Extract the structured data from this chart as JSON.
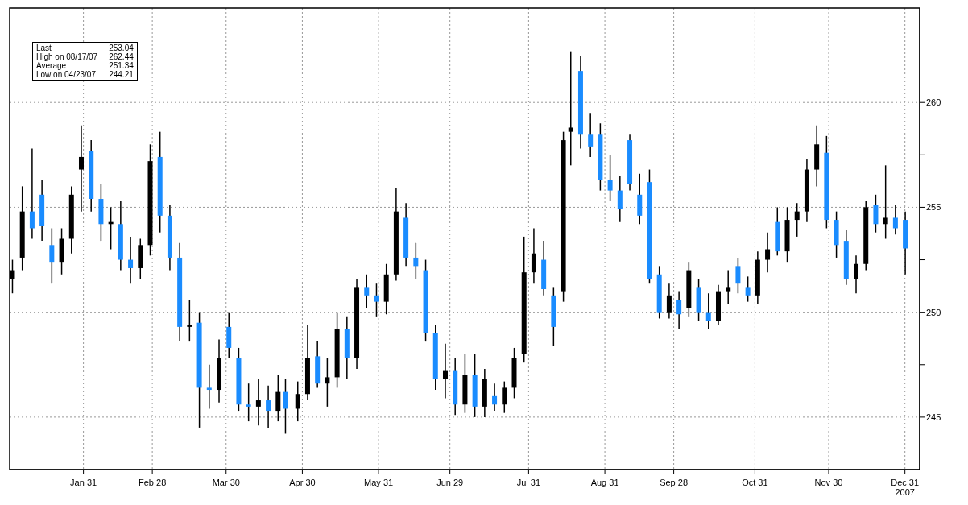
{
  "chart_data": {
    "type": "candlestick",
    "annotations": [
      "Last 253.04",
      "High on 08/17/07 262.44",
      "Average 251.34",
      "Low on 04/23/07 244.21"
    ],
    "x": [
      "2007-01-02",
      "2007-01-06",
      "2007-01-10",
      "2007-01-14",
      "2007-01-18",
      "2007-01-22",
      "2007-01-26",
      "2007-01-30",
      "2007-02-03",
      "2007-02-07",
      "2007-02-11",
      "2007-02-15",
      "2007-02-19",
      "2007-02-23",
      "2007-02-27",
      "2007-03-03",
      "2007-03-07",
      "2007-03-11",
      "2007-03-15",
      "2007-03-19",
      "2007-03-23",
      "2007-03-27",
      "2007-03-31",
      "2007-04-04",
      "2007-04-08",
      "2007-04-12",
      "2007-04-16",
      "2007-04-20",
      "2007-04-23",
      "2007-04-28",
      "2007-05-02",
      "2007-05-06",
      "2007-05-10",
      "2007-05-14",
      "2007-05-18",
      "2007-05-22",
      "2007-05-26",
      "2007-05-30",
      "2007-06-03",
      "2007-06-07",
      "2007-06-11",
      "2007-06-15",
      "2007-06-19",
      "2007-06-23",
      "2007-06-27",
      "2007-07-01",
      "2007-07-05",
      "2007-07-09",
      "2007-07-13",
      "2007-07-17",
      "2007-07-21",
      "2007-07-25",
      "2007-07-29",
      "2007-08-02",
      "2007-08-06",
      "2007-08-10",
      "2007-08-14",
      "2007-08-17",
      "2007-08-21",
      "2007-08-25",
      "2007-08-29",
      "2007-09-02",
      "2007-09-06",
      "2007-09-10",
      "2007-09-14",
      "2007-09-18",
      "2007-09-22",
      "2007-09-26",
      "2007-09-30",
      "2007-10-04",
      "2007-10-08",
      "2007-10-12",
      "2007-10-16",
      "2007-10-20",
      "2007-10-24",
      "2007-10-28",
      "2007-11-01",
      "2007-11-05",
      "2007-11-09",
      "2007-11-13",
      "2007-11-17",
      "2007-11-21",
      "2007-11-25",
      "2007-11-29",
      "2007-12-03",
      "2007-12-07",
      "2007-12-11",
      "2007-12-15",
      "2007-12-19",
      "2007-12-23",
      "2007-12-27",
      "2007-12-31"
    ],
    "ohlc": [
      [
        251.6,
        252.5,
        250.9,
        252.0
      ],
      [
        252.6,
        256.0,
        252.0,
        254.8
      ],
      [
        254.8,
        257.8,
        253.5,
        254.0
      ],
      [
        255.6,
        256.3,
        253.4,
        254.1
      ],
      [
        253.2,
        254.0,
        251.4,
        252.4
      ],
      [
        252.4,
        254.0,
        251.8,
        253.5
      ],
      [
        253.5,
        256.0,
        252.8,
        255.6
      ],
      [
        256.8,
        258.9,
        254.8,
        257.4
      ],
      [
        257.7,
        258.2,
        254.8,
        255.4
      ],
      [
        255.4,
        256.1,
        253.4,
        254.2
      ],
      [
        254.2,
        255.0,
        253.0,
        254.3
      ],
      [
        254.2,
        255.3,
        252.0,
        252.5
      ],
      [
        252.5,
        253.6,
        251.4,
        252.1
      ],
      [
        252.1,
        253.5,
        251.6,
        253.2
      ],
      [
        253.2,
        258.0,
        252.7,
        257.2
      ],
      [
        257.4,
        258.6,
        253.8,
        254.6
      ],
      [
        254.6,
        255.1,
        252.0,
        252.6
      ],
      [
        252.6,
        253.3,
        248.6,
        249.3
      ],
      [
        249.3,
        250.6,
        248.6,
        249.4
      ],
      [
        249.5,
        250.0,
        244.5,
        246.4
      ],
      [
        246.4,
        247.5,
        245.4,
        246.3
      ],
      [
        246.3,
        248.7,
        245.7,
        247.8
      ],
      [
        249.3,
        250.0,
        247.8,
        248.3
      ],
      [
        247.8,
        248.3,
        245.3,
        245.6
      ],
      [
        245.6,
        246.6,
        244.8,
        245.5
      ],
      [
        245.5,
        246.8,
        244.6,
        245.8
      ],
      [
        245.8,
        246.5,
        244.5,
        245.3
      ],
      [
        245.3,
        247.0,
        244.8,
        246.2
      ],
      [
        246.2,
        246.8,
        244.21,
        245.4
      ],
      [
        245.4,
        246.7,
        244.8,
        246.1
      ],
      [
        246.1,
        249.4,
        245.8,
        247.8
      ],
      [
        247.9,
        248.6,
        246.4,
        246.6
      ],
      [
        246.6,
        247.8,
        245.5,
        246.9
      ],
      [
        246.9,
        250.0,
        246.4,
        249.2
      ],
      [
        249.2,
        249.8,
        246.8,
        247.8
      ],
      [
        247.8,
        251.6,
        247.3,
        251.2
      ],
      [
        251.2,
        251.8,
        250.2,
        250.8
      ],
      [
        250.8,
        251.4,
        249.8,
        250.5
      ],
      [
        250.5,
        252.3,
        249.9,
        251.8
      ],
      [
        251.8,
        255.9,
        251.5,
        254.8
      ],
      [
        254.5,
        255.2,
        252.2,
        252.6
      ],
      [
        252.6,
        253.3,
        251.6,
        252.2
      ],
      [
        252.0,
        252.5,
        248.6,
        249.0
      ],
      [
        249.0,
        249.4,
        246.3,
        246.8
      ],
      [
        246.8,
        248.5,
        245.9,
        247.2
      ],
      [
        247.2,
        247.8,
        245.1,
        245.6
      ],
      [
        245.6,
        248.0,
        245.2,
        247.0
      ],
      [
        247.0,
        248.0,
        245.0,
        245.5
      ],
      [
        245.5,
        247.3,
        245.0,
        246.8
      ],
      [
        246.0,
        246.6,
        245.3,
        245.6
      ],
      [
        245.6,
        246.7,
        245.2,
        246.4
      ],
      [
        246.4,
        248.3,
        245.9,
        247.8
      ],
      [
        248.0,
        253.6,
        247.6,
        251.9
      ],
      [
        251.9,
        254.0,
        251.4,
        252.8
      ],
      [
        252.5,
        253.4,
        250.8,
        251.1
      ],
      [
        250.8,
        251.2,
        248.4,
        249.3
      ],
      [
        251.0,
        258.6,
        250.5,
        258.2
      ],
      [
        258.6,
        262.44,
        257.0,
        258.8
      ],
      [
        261.5,
        262.2,
        257.8,
        258.5
      ],
      [
        258.5,
        259.5,
        257.4,
        257.9
      ],
      [
        258.5,
        259.0,
        255.8,
        256.3
      ],
      [
        256.3,
        257.5,
        255.3,
        255.8
      ],
      [
        255.8,
        256.5,
        254.3,
        254.9
      ],
      [
        258.2,
        258.5,
        255.8,
        256.1
      ],
      [
        255.6,
        256.6,
        254.2,
        254.6
      ],
      [
        256.2,
        256.8,
        251.4,
        251.6
      ],
      [
        251.8,
        252.2,
        249.7,
        250.0
      ],
      [
        250.0,
        251.4,
        249.7,
        250.8
      ],
      [
        250.6,
        251.0,
        249.2,
        249.9
      ],
      [
        250.2,
        252.4,
        249.8,
        252.0
      ],
      [
        251.2,
        251.6,
        249.6,
        250.0
      ],
      [
        250.0,
        250.9,
        249.2,
        249.6
      ],
      [
        249.6,
        251.3,
        249.4,
        251.0
      ],
      [
        251.0,
        252.0,
        250.4,
        251.2
      ],
      [
        252.2,
        252.6,
        250.9,
        251.4
      ],
      [
        251.2,
        251.7,
        250.5,
        250.8
      ],
      [
        250.8,
        252.9,
        250.4,
        252.5
      ],
      [
        252.5,
        253.8,
        251.9,
        253.0
      ],
      [
        254.3,
        255.0,
        252.7,
        252.9
      ],
      [
        252.9,
        255.0,
        252.4,
        254.4
      ],
      [
        254.4,
        255.2,
        253.6,
        254.8
      ],
      [
        254.8,
        257.3,
        254.3,
        256.8
      ],
      [
        256.8,
        258.9,
        256.0,
        258.0
      ],
      [
        257.6,
        258.4,
        254.0,
        254.4
      ],
      [
        254.4,
        254.8,
        252.6,
        253.2
      ],
      [
        253.4,
        253.9,
        251.3,
        251.6
      ],
      [
        251.6,
        252.7,
        250.9,
        252.3
      ],
      [
        252.3,
        255.3,
        252.0,
        255.0
      ],
      [
        255.1,
        255.6,
        253.8,
        254.2
      ],
      [
        254.2,
        257.0,
        253.5,
        254.5
      ],
      [
        254.5,
        255.1,
        253.7,
        254.0
      ],
      [
        254.4,
        254.8,
        251.8,
        253.04
      ]
    ],
    "colors": [
      "#000000",
      "#000000",
      "#1a8cff",
      "#1a8cff",
      "#1a8cff",
      "#000000",
      "#000000",
      "#000000",
      "#1a8cff",
      "#1a8cff",
      "#000000",
      "#1a8cff",
      "#1a8cff",
      "#000000",
      "#000000",
      "#1a8cff",
      "#1a8cff",
      "#1a8cff",
      "#000000",
      "#1a8cff",
      "#1a8cff",
      "#000000",
      "#1a8cff",
      "#1a8cff",
      "#1a8cff",
      "#000000",
      "#1a8cff",
      "#000000",
      "#1a8cff",
      "#000000",
      "#000000",
      "#1a8cff",
      "#000000",
      "#000000",
      "#1a8cff",
      "#000000",
      "#1a8cff",
      "#1a8cff",
      "#000000",
      "#000000",
      "#1a8cff",
      "#1a8cff",
      "#1a8cff",
      "#1a8cff",
      "#000000",
      "#1a8cff",
      "#000000",
      "#1a8cff",
      "#000000",
      "#1a8cff",
      "#000000",
      "#000000",
      "#000000",
      "#000000",
      "#1a8cff",
      "#1a8cff",
      "#000000",
      "#000000",
      "#1a8cff",
      "#1a8cff",
      "#1a8cff",
      "#1a8cff",
      "#1a8cff",
      "#1a8cff",
      "#1a8cff",
      "#1a8cff",
      "#1a8cff",
      "#000000",
      "#1a8cff",
      "#000000",
      "#1a8cff",
      "#1a8cff",
      "#000000",
      "#000000",
      "#1a8cff",
      "#1a8cff",
      "#000000",
      "#000000",
      "#1a8cff",
      "#000000",
      "#000000",
      "#000000",
      "#000000",
      "#1a8cff",
      "#1a8cff",
      "#1a8cff",
      "#000000",
      "#000000",
      "#1a8cff",
      "#000000",
      "#1a8cff",
      "#1a8cff"
    ],
    "xlim": [
      "2007-01-01",
      "2008-01-06"
    ],
    "xticks": [
      {
        "value": "2007-01-31",
        "label": "Jan 31"
      },
      {
        "value": "2007-02-28",
        "label": "Feb 28"
      },
      {
        "value": "2007-03-30",
        "label": "Mar 30"
      },
      {
        "value": "2007-04-30",
        "label": "Apr 30"
      },
      {
        "value": "2007-05-31",
        "label": "May 31"
      },
      {
        "value": "2007-06-29",
        "label": "Jun 29"
      },
      {
        "value": "2007-07-31",
        "label": "Jul 31"
      },
      {
        "value": "2007-08-31",
        "label": "Aug 31"
      },
      {
        "value": "2007-09-28",
        "label": "Sep 28"
      },
      {
        "value": "2007-10-31",
        "label": "Oct 31"
      },
      {
        "value": "2007-11-30",
        "label": "Nov 30"
      },
      {
        "value": "2007-12-31",
        "label": "Dec 31\n2007"
      }
    ],
    "ylim": [
      242.5,
      264.5
    ],
    "yticks": [
      245,
      {
        "value": 247.5,
        "label": null
      },
      250,
      {
        "value": 252.5,
        "label": null
      },
      255,
      {
        "value": 257.5,
        "label": null
      },
      260
    ],
    "grid": true
  }
}
